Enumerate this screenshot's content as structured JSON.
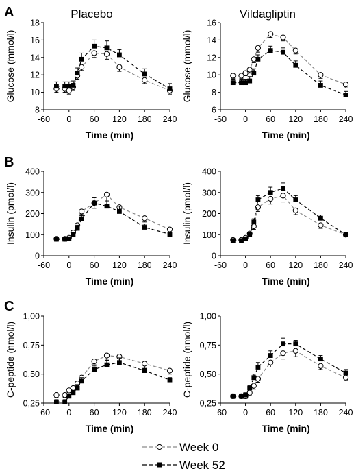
{
  "figure": {
    "panel_letters": [
      "A",
      "B",
      "C"
    ],
    "column_titles": [
      "Placebo",
      "Vildagliptin"
    ],
    "legend": [
      {
        "label": "Week 0",
        "marker": "open-circle",
        "line": "light-gray-dashed"
      },
      {
        "label": "Week 52",
        "marker": "filled-square",
        "line": "black-dashed"
      }
    ],
    "colors": {
      "week0_line": "#8a8a8a",
      "week52_line": "#000000",
      "text": "#000000",
      "background": "#ffffff"
    }
  },
  "chart_data": [
    {
      "panel": "A",
      "title": "Placebo",
      "type": "line",
      "xlabel": "Time (min)",
      "ylabel": "Glucose (mmol/l)",
      "xlim": [
        -60,
        240
      ],
      "xticks": [
        -60,
        0,
        60,
        120,
        180,
        240
      ],
      "xtick_labels": [
        "-60",
        "0",
        "60",
        "120",
        "180",
        "240"
      ],
      "ylim": [
        8,
        18
      ],
      "yticks": [
        8,
        10,
        12,
        14,
        16,
        18
      ],
      "ytick_labels": [
        "8",
        "10",
        "12",
        "14",
        "16",
        "18"
      ],
      "x": [
        -30,
        -10,
        0,
        10,
        20,
        30,
        60,
        90,
        120,
        180,
        240
      ],
      "series": [
        {
          "name": "Week 0",
          "values": [
            10.4,
            10.4,
            10.2,
            10.6,
            11.9,
            12.9,
            14.5,
            14.4,
            12.9,
            11.4,
            10.2
          ],
          "err": [
            0.4,
            0.4,
            0.4,
            0.4,
            0.4,
            0.4,
            0.5,
            0.6,
            0.5,
            0.4,
            0.4
          ]
        },
        {
          "name": "Week 52",
          "values": [
            10.7,
            10.7,
            10.7,
            10.8,
            12.2,
            13.8,
            15.3,
            15.1,
            14.3,
            12.1,
            10.4
          ],
          "err": [
            0.5,
            0.5,
            0.5,
            0.5,
            0.6,
            0.7,
            0.7,
            0.8,
            0.6,
            0.6,
            0.6
          ]
        }
      ]
    },
    {
      "panel": "A",
      "title": "Vildagliptin",
      "type": "line",
      "xlabel": "Time (min)",
      "ylabel": "Glucose (mmol/l)",
      "xlim": [
        -60,
        240
      ],
      "xticks": [
        -60,
        0,
        60,
        120,
        180,
        240
      ],
      "xtick_labels": [
        "-60",
        "0",
        "60",
        "120",
        "180",
        "240"
      ],
      "ylim": [
        6,
        16
      ],
      "yticks": [
        6,
        8,
        10,
        12,
        14,
        16
      ],
      "ytick_labels": [
        "6",
        "8",
        "10",
        "12",
        "14",
        "16"
      ],
      "x": [
        -30,
        -10,
        0,
        10,
        20,
        30,
        60,
        90,
        120,
        180,
        240
      ],
      "series": [
        {
          "name": "Week 0",
          "values": [
            9.9,
            9.9,
            10.2,
            10.6,
            11.8,
            13.1,
            14.7,
            14.3,
            12.8,
            10.0,
            8.9
          ],
          "err": [
            0.3,
            0.3,
            0.3,
            0.4,
            0.4,
            0.5,
            0.4,
            0.4,
            0.4,
            0.4,
            0.4
          ]
        },
        {
          "name": "Week 52",
          "values": [
            9.1,
            9.1,
            9.1,
            9.3,
            10.2,
            11.8,
            12.8,
            12.6,
            11.1,
            8.8,
            7.7
          ],
          "err": [
            0.4,
            0.4,
            0.4,
            0.5,
            0.5,
            0.5,
            0.5,
            0.5,
            0.5,
            0.5,
            0.4
          ]
        }
      ]
    },
    {
      "panel": "B",
      "title": "",
      "type": "line",
      "xlabel": "Time (min)",
      "ylabel": "Insulin (pmol/l)",
      "xlim": [
        -60,
        240
      ],
      "xticks": [
        -60,
        0,
        60,
        120,
        180,
        240
      ],
      "xtick_labels": [
        "-60",
        "0",
        "60",
        "120",
        "180",
        "240"
      ],
      "ylim": [
        0,
        400
      ],
      "yticks": [
        0,
        100,
        200,
        300,
        400
      ],
      "ytick_labels": [
        "0",
        "100",
        "200",
        "300",
        "400"
      ],
      "x": [
        -30,
        -10,
        0,
        10,
        20,
        30,
        60,
        90,
        120,
        180,
        240
      ],
      "series": [
        {
          "name": "Week 0",
          "values": [
            80,
            80,
            85,
            110,
            145,
            210,
            250,
            290,
            230,
            178,
            125
          ],
          "err": [
            8,
            8,
            10,
            12,
            15,
            20,
            25,
            30,
            25,
            18,
            15
          ]
        },
        {
          "name": "Week 52",
          "values": [
            78,
            78,
            80,
            100,
            130,
            175,
            250,
            235,
            210,
            135,
            102
          ],
          "err": [
            8,
            8,
            10,
            12,
            15,
            20,
            25,
            30,
            25,
            15,
            10
          ]
        }
      ]
    },
    {
      "panel": "B",
      "title": "",
      "type": "line",
      "xlabel": "Time (min)",
      "ylabel": "Insulin (pmol/l)",
      "xlim": [
        -60,
        240
      ],
      "xticks": [
        -60,
        0,
        60,
        120,
        180,
        240
      ],
      "xtick_labels": [
        "-60",
        "0",
        "60",
        "120",
        "180",
        "240"
      ],
      "ylim": [
        0,
        400
      ],
      "yticks": [
        0,
        100,
        200,
        300,
        400
      ],
      "ytick_labels": [
        "0",
        "100",
        "200",
        "300",
        "400"
      ],
      "x": [
        -30,
        -10,
        0,
        10,
        20,
        30,
        60,
        90,
        120,
        180,
        240
      ],
      "series": [
        {
          "name": "Week 0",
          "values": [
            75,
            75,
            85,
            105,
            140,
            230,
            270,
            285,
            215,
            145,
            100
          ],
          "err": [
            8,
            8,
            10,
            12,
            15,
            20,
            25,
            30,
            20,
            15,
            10
          ]
        },
        {
          "name": "Week 52",
          "values": [
            72,
            72,
            80,
            100,
            160,
            265,
            300,
            320,
            265,
            178,
            100
          ],
          "err": [
            8,
            8,
            10,
            12,
            15,
            20,
            25,
            25,
            20,
            15,
            10
          ]
        }
      ]
    },
    {
      "panel": "C",
      "title": "",
      "type": "line",
      "xlabel": "Time (min)",
      "ylabel": "C-peptide (nmol/l)",
      "xlim": [
        -60,
        240
      ],
      "xticks": [
        -60,
        0,
        60,
        120,
        180,
        240
      ],
      "xtick_labels": [
        "-60",
        "0",
        "60",
        "120",
        "180",
        "240"
      ],
      "ylim": [
        0.25,
        1.0
      ],
      "yticks": [
        0.25,
        0.5,
        0.75,
        1.0
      ],
      "ytick_labels": [
        "0,25",
        "0,50",
        "0,75",
        "1,00"
      ],
      "x": [
        -30,
        -10,
        0,
        10,
        20,
        30,
        60,
        90,
        120,
        180,
        240
      ],
      "series": [
        {
          "name": "Week 0",
          "values": [
            0.32,
            0.32,
            0.36,
            0.38,
            0.42,
            0.47,
            0.61,
            0.66,
            0.65,
            0.59,
            0.53
          ],
          "err": [
            0.02,
            0.02,
            0.02,
            0.02,
            0.03,
            0.03,
            0.04,
            0.04,
            0.04,
            0.04,
            0.03
          ]
        },
        {
          "name": "Week 52",
          "values": [
            0.26,
            0.26,
            0.31,
            0.34,
            0.38,
            0.44,
            0.54,
            0.58,
            0.6,
            0.53,
            0.45
          ],
          "err": [
            0.02,
            0.02,
            0.02,
            0.02,
            0.03,
            0.03,
            0.04,
            0.04,
            0.04,
            0.03,
            0.02
          ]
        }
      ]
    },
    {
      "panel": "C",
      "title": "",
      "type": "line",
      "xlabel": "Time (min)",
      "ylabel": "C-peptide (nmol/l)",
      "xlim": [
        -60,
        240
      ],
      "xticks": [
        -60,
        0,
        60,
        120,
        180,
        240
      ],
      "xtick_labels": [
        "-60",
        "0",
        "60",
        "120",
        "180",
        "240"
      ],
      "ylim": [
        0.25,
        1.0
      ],
      "yticks": [
        0.25,
        0.5,
        0.75,
        1.0
      ],
      "ytick_labels": [
        "0,25",
        "0,50",
        "0,75",
        "1,00"
      ],
      "x": [
        -30,
        -10,
        0,
        10,
        20,
        30,
        60,
        90,
        120,
        180,
        240
      ],
      "series": [
        {
          "name": "Week 0",
          "values": [
            0.31,
            0.31,
            0.31,
            0.34,
            0.4,
            0.46,
            0.6,
            0.68,
            0.7,
            0.57,
            0.47
          ],
          "err": [
            0.02,
            0.02,
            0.02,
            0.02,
            0.03,
            0.03,
            0.04,
            0.05,
            0.05,
            0.03,
            0.02
          ]
        },
        {
          "name": "Week 52",
          "values": [
            0.31,
            0.31,
            0.32,
            0.38,
            0.47,
            0.56,
            0.66,
            0.76,
            0.76,
            0.63,
            0.51
          ],
          "err": [
            0.02,
            0.02,
            0.02,
            0.02,
            0.03,
            0.04,
            0.04,
            0.05,
            0.03,
            0.03,
            0.03
          ]
        }
      ]
    }
  ]
}
